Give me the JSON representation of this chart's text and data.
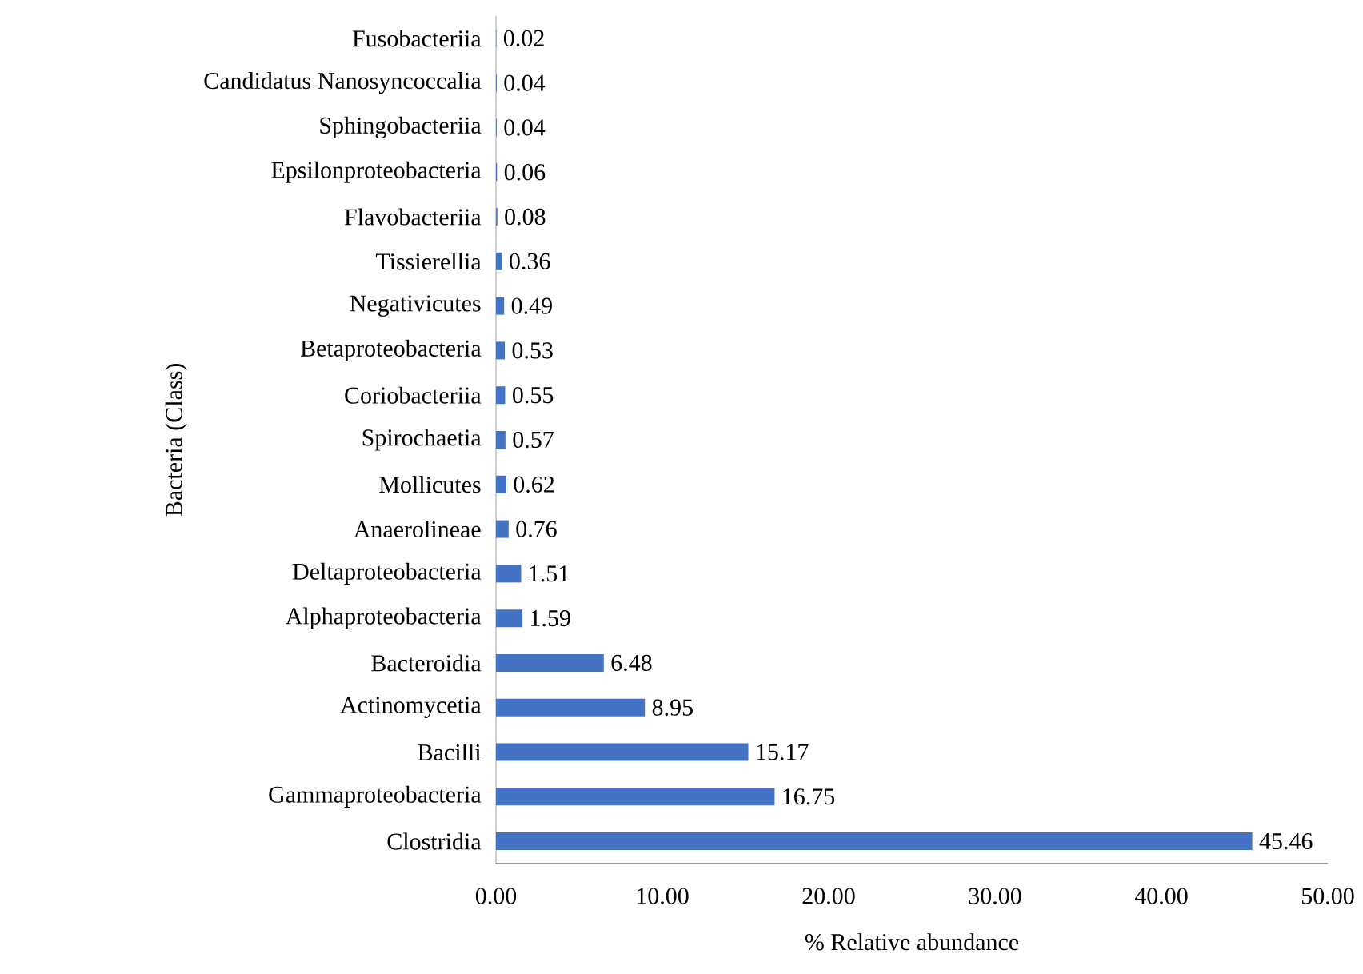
{
  "chart_data": {
    "type": "bar",
    "orientation": "horizontal",
    "categories": [
      "Fusobacteriia",
      "Candidatus Nanosyncoccalia",
      "Sphingobacteriia",
      "Epsilonproteobacteria",
      "Flavobacteriia",
      "Tissierellia",
      "Negativicutes",
      "Betaproteobacteria",
      "Coriobacteriia",
      "Spirochaetia",
      "Mollicutes",
      "Anaerolineae",
      "Deltaproteobacteria",
      "Alphaproteobacteria",
      "Bacteroidia",
      "Actinomycetia",
      "Bacilli",
      "Gammaproteobacteria",
      "Clostridia"
    ],
    "values": [
      0.02,
      0.04,
      0.04,
      0.06,
      0.08,
      0.36,
      0.49,
      0.53,
      0.55,
      0.57,
      0.62,
      0.76,
      1.51,
      1.59,
      6.48,
      8.95,
      15.17,
      16.75,
      45.46
    ],
    "color": "#4472c4",
    "data_labels": true,
    "xlim": [
      0,
      50
    ],
    "xticks": [
      {
        "value": 0,
        "label": "0.00"
      },
      {
        "value": 10,
        "label": "10.00"
      },
      {
        "value": 20,
        "label": "20.00"
      },
      {
        "value": 30,
        "label": "30.00"
      },
      {
        "value": 40,
        "label": "40.00"
      },
      {
        "value": 50,
        "label": "50.00"
      }
    ],
    "xlabel": "% Relative abundance",
    "ylabel": "Bacteria (Class)"
  }
}
